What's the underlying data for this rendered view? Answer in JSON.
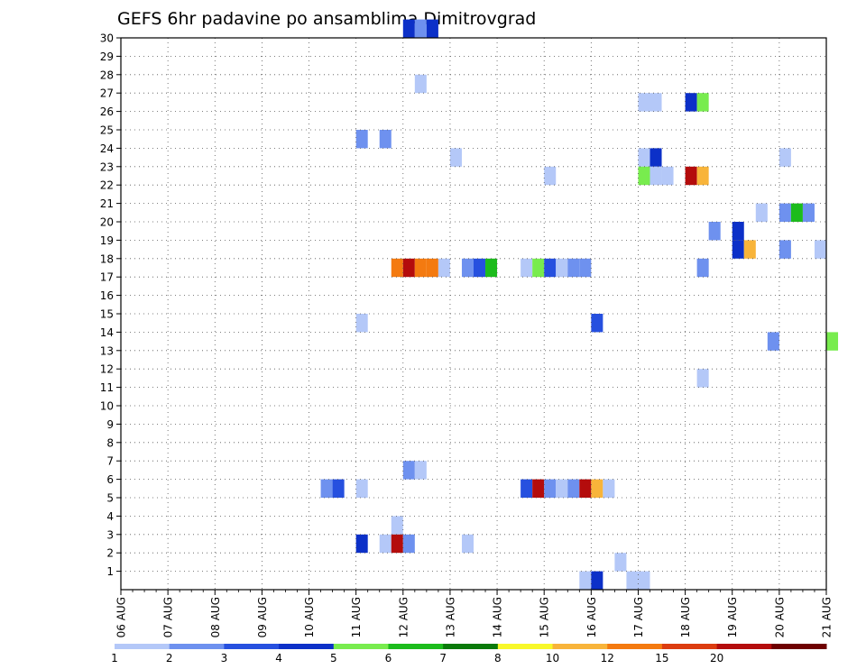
{
  "chart_data": {
    "type": "heatmap",
    "title": "GEFS 6hr padavine po ansamblima Dimitrovgrad",
    "xlabel": "",
    "ylabel": "",
    "grid": true,
    "y_categories": [
      "1",
      "2",
      "3",
      "4",
      "5",
      "6",
      "7",
      "8",
      "9",
      "10",
      "11",
      "12",
      "13",
      "14",
      "15",
      "16",
      "17",
      "18",
      "19",
      "20",
      "21",
      "22",
      "23",
      "24",
      "25",
      "26",
      "27",
      "28",
      "29",
      "30"
    ],
    "x_ticks": [
      "06 AUG",
      "07 AUG",
      "08 AUG",
      "09 AUG",
      "10 AUG",
      "11 AUG",
      "12 AUG",
      "13 AUG",
      "14 AUG",
      "15 AUG",
      "16 AUG",
      "17 AUG",
      "18 AUG",
      "19 AUG",
      "20 AUG",
      "21 AUG"
    ],
    "x_step_hours": 6,
    "colorbar": {
      "colors": [
        "#b4c8f8",
        "#6e91ef",
        "#2650df",
        "#0c30c8",
        "#78ec4e",
        "#1cbc1c",
        "#0a7a0a",
        "#f8f82a",
        "#f8b43a",
        "#f47a10",
        "#dc3c10",
        "#b40c0c",
        "#6e0000"
      ],
      "labels": [
        "1",
        "2",
        "3",
        "4",
        "5",
        "6",
        "7",
        "8",
        "10",
        "12",
        "15",
        "20"
      ]
    },
    "cells": [
      {
        "member": 30,
        "step": 24,
        "value": 4
      },
      {
        "member": 30,
        "step": 25,
        "value": 2
      },
      {
        "member": 30,
        "step": 26,
        "value": 4
      },
      {
        "member": 27,
        "step": 25,
        "value": 1
      },
      {
        "member": 26,
        "step": 44,
        "value": 1
      },
      {
        "member": 26,
        "step": 45,
        "value": 1
      },
      {
        "member": 26,
        "step": 48,
        "value": 4
      },
      {
        "member": 26,
        "step": 49,
        "value": 5
      },
      {
        "member": 24,
        "step": 20,
        "value": 2
      },
      {
        "member": 24,
        "step": 22,
        "value": 2
      },
      {
        "member": 23,
        "step": 28,
        "value": 1
      },
      {
        "member": 23,
        "step": 44,
        "value": 1
      },
      {
        "member": 23,
        "step": 45,
        "value": 4
      },
      {
        "member": 23,
        "step": 56,
        "value": 1
      },
      {
        "member": 22,
        "step": 36,
        "value": 1
      },
      {
        "member": 22,
        "step": 44,
        "value": 5
      },
      {
        "member": 22,
        "step": 45,
        "value": 1
      },
      {
        "member": 22,
        "step": 46,
        "value": 1
      },
      {
        "member": 22,
        "step": 48,
        "value": 20
      },
      {
        "member": 22,
        "step": 49,
        "value": 10
      },
      {
        "member": 20,
        "step": 54,
        "value": 1
      },
      {
        "member": 20,
        "step": 56,
        "value": 2
      },
      {
        "member": 20,
        "step": 57,
        "value": 6
      },
      {
        "member": 20,
        "step": 58,
        "value": 2
      },
      {
        "member": 19,
        "step": 50,
        "value": 2
      },
      {
        "member": 19,
        "step": 52,
        "value": 4
      },
      {
        "member": 18,
        "step": 52,
        "value": 4
      },
      {
        "member": 18,
        "step": 53,
        "value": 10
      },
      {
        "member": 18,
        "step": 56,
        "value": 2
      },
      {
        "member": 18,
        "step": 59,
        "value": 1
      },
      {
        "member": 17,
        "step": 23,
        "value": 12
      },
      {
        "member": 17,
        "step": 24,
        "value": 20
      },
      {
        "member": 17,
        "step": 25,
        "value": 12
      },
      {
        "member": 17,
        "step": 26,
        "value": 12
      },
      {
        "member": 17,
        "step": 27,
        "value": 1
      },
      {
        "member": 17,
        "step": 29,
        "value": 2
      },
      {
        "member": 17,
        "step": 30,
        "value": 3
      },
      {
        "member": 17,
        "step": 31,
        "value": 6
      },
      {
        "member": 17,
        "step": 34,
        "value": 1
      },
      {
        "member": 17,
        "step": 35,
        "value": 5
      },
      {
        "member": 17,
        "step": 36,
        "value": 3
      },
      {
        "member": 17,
        "step": 37,
        "value": 1
      },
      {
        "member": 17,
        "step": 38,
        "value": 2
      },
      {
        "member": 17,
        "step": 39,
        "value": 2
      },
      {
        "member": 17,
        "step": 49,
        "value": 2
      },
      {
        "member": 14,
        "step": 20,
        "value": 1
      },
      {
        "member": 14,
        "step": 40,
        "value": 3
      },
      {
        "member": 13,
        "step": 55,
        "value": 2
      },
      {
        "member": 13,
        "step": 60,
        "value": 5
      },
      {
        "member": 11,
        "step": 49,
        "value": 1
      },
      {
        "member": 6,
        "step": 24,
        "value": 2
      },
      {
        "member": 6,
        "step": 25,
        "value": 1
      },
      {
        "member": 5,
        "step": 17,
        "value": 2
      },
      {
        "member": 5,
        "step": 18,
        "value": 3
      },
      {
        "member": 5,
        "step": 20,
        "value": 1
      },
      {
        "member": 5,
        "step": 34,
        "value": 3
      },
      {
        "member": 5,
        "step": 35,
        "value": 20
      },
      {
        "member": 5,
        "step": 36,
        "value": 2
      },
      {
        "member": 5,
        "step": 37,
        "value": 1
      },
      {
        "member": 5,
        "step": 38,
        "value": 2
      },
      {
        "member": 5,
        "step": 39,
        "value": 20
      },
      {
        "member": 5,
        "step": 40,
        "value": 10
      },
      {
        "member": 5,
        "step": 41,
        "value": 1
      },
      {
        "member": 3,
        "step": 23,
        "value": 1
      },
      {
        "member": 2,
        "step": 20,
        "value": 4
      },
      {
        "member": 2,
        "step": 22,
        "value": 1
      },
      {
        "member": 2,
        "step": 23,
        "value": 20
      },
      {
        "member": 2,
        "step": 24,
        "value": 2
      },
      {
        "member": 2,
        "step": 29,
        "value": 1
      },
      {
        "member": 1,
        "step": 42,
        "value": 1
      },
      {
        "member": 0,
        "step": 39,
        "value": 1
      },
      {
        "member": 0,
        "step": 40,
        "value": 4
      },
      {
        "member": 0,
        "step": 43,
        "value": 1
      },
      {
        "member": 0,
        "step": 44,
        "value": 1
      }
    ]
  }
}
